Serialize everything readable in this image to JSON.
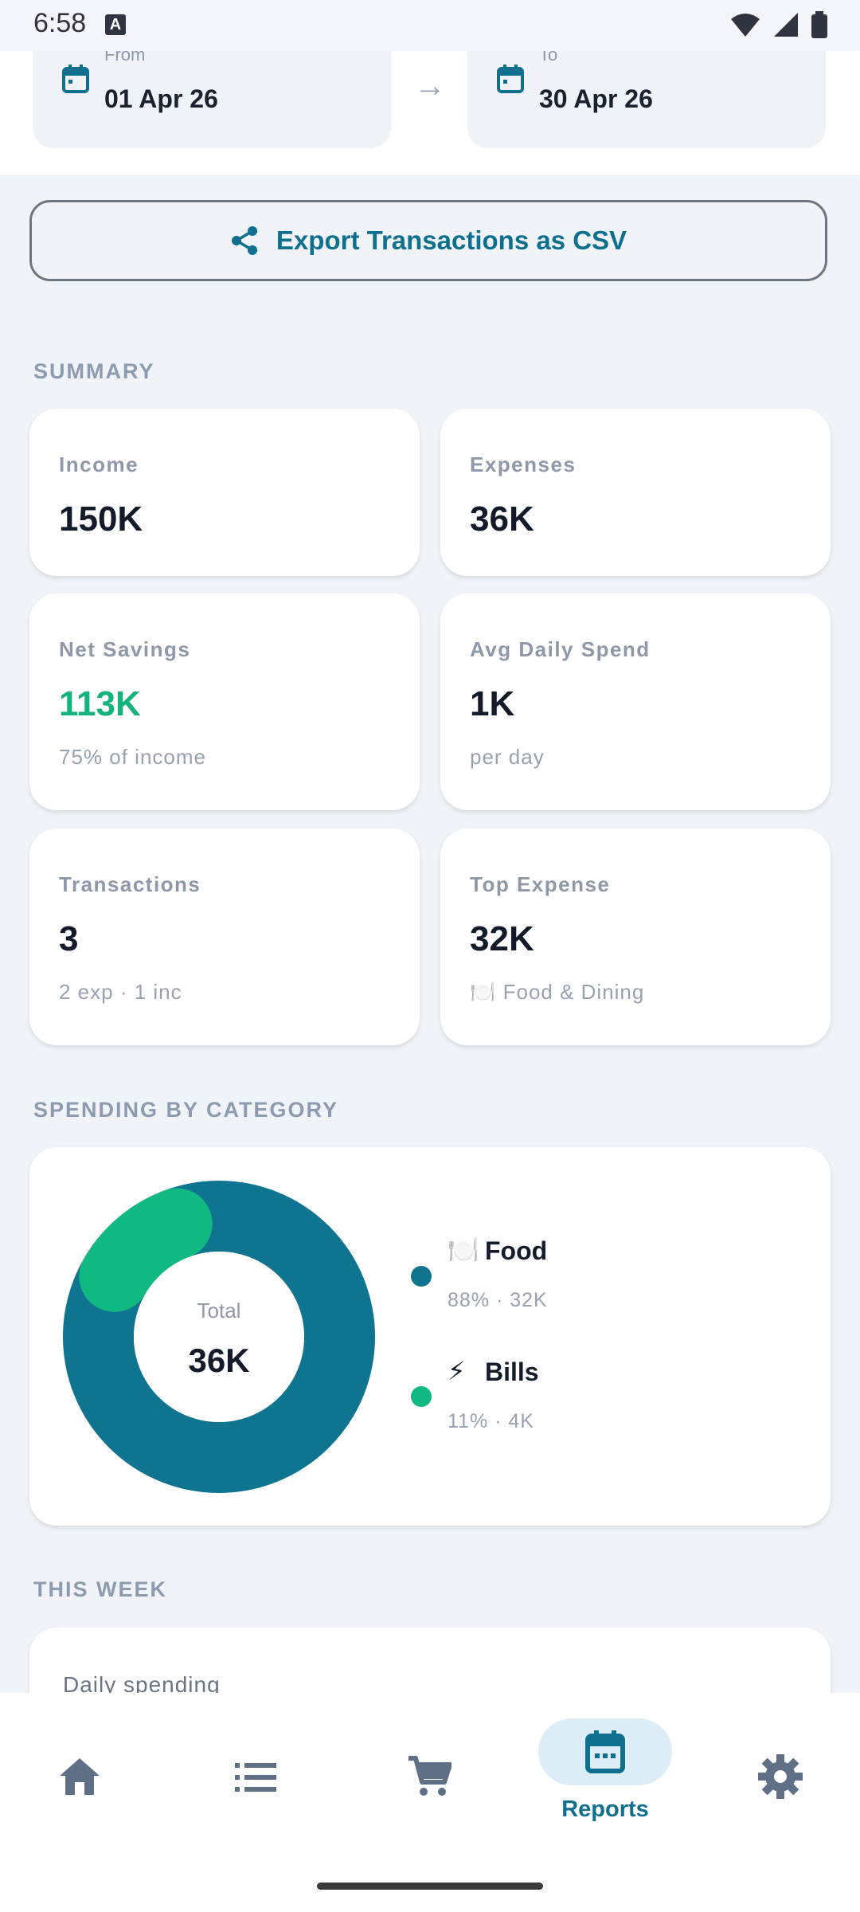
{
  "status_bar": {
    "time": "6:58",
    "a_badge": "A"
  },
  "date_range": {
    "from": {
      "caption": "From",
      "value": "01 Apr 26"
    },
    "arrow": "→",
    "to": {
      "caption": "To",
      "value": "30 Apr 26"
    }
  },
  "export": {
    "label": "Export Transactions as CSV",
    "icon": "share-icon"
  },
  "summary": {
    "section_label": "SUMMARY",
    "income": {
      "label": "Income",
      "value": "150K"
    },
    "expenses": {
      "label": "Expenses",
      "value": "36K"
    },
    "net_savings": {
      "label": "Net Savings",
      "value": "113K",
      "sub": "75% of income",
      "color": "#14b37d"
    },
    "avg_daily": {
      "label": "Avg Daily Spend",
      "value": "1K",
      "sub": "per day"
    },
    "transactions": {
      "label": "Transactions",
      "value": "3",
      "sub": "2 exp · 1 inc"
    },
    "top_expense": {
      "label": "Top Expense",
      "value": "32K",
      "sub": "🍽️ Food & Dining"
    }
  },
  "category": {
    "section_label": "SPENDING BY CATEGORY",
    "center_label": "Total",
    "center_value": "36K",
    "items": [
      {
        "emoji": "🍽️",
        "name": "Food",
        "sub": "88% · 32K",
        "share": 88,
        "color": "#0e7490"
      },
      {
        "emoji": "⚡",
        "name": "Bills",
        "sub": "11% · 4K",
        "share": 11,
        "color": "#10b981"
      }
    ]
  },
  "this_week": {
    "section_label": "THIS WEEK",
    "card_title": "Daily spending"
  },
  "nav": {
    "items": [
      {
        "name": "home",
        "icon": "home-icon"
      },
      {
        "name": "transactions",
        "icon": "list-icon"
      },
      {
        "name": "shopping",
        "icon": "cart-icon"
      },
      {
        "name": "reports",
        "icon": "calendar-icon",
        "label": "Reports",
        "active": true
      },
      {
        "name": "settings",
        "icon": "gear-icon"
      }
    ]
  },
  "colors": {
    "accent": "#0e6f8e",
    "positive": "#14b37d",
    "background": "#f0f3f8"
  }
}
